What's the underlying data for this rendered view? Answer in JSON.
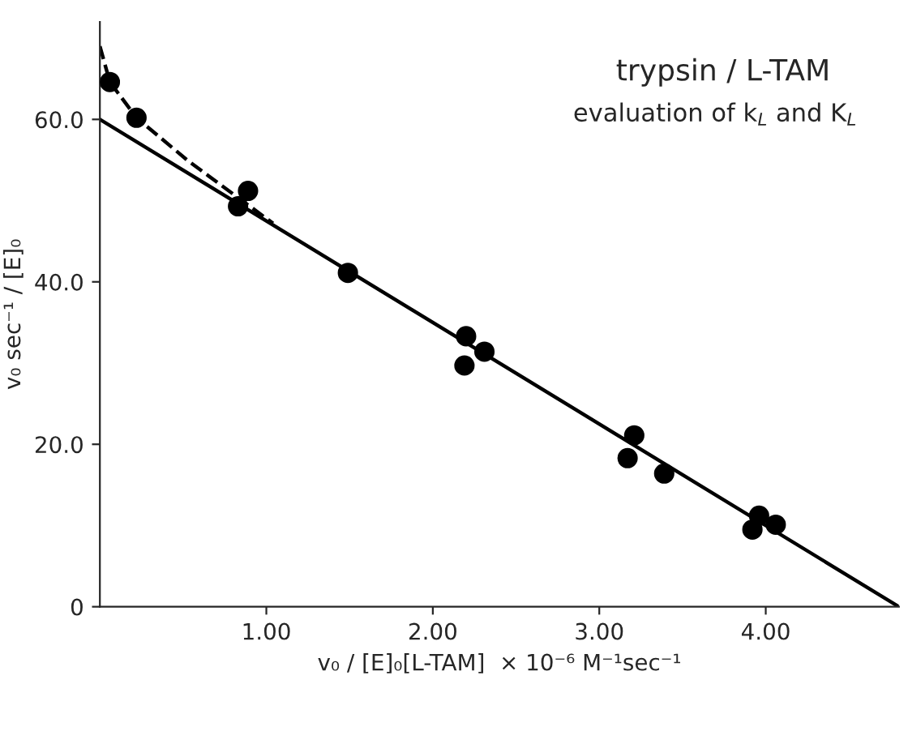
{
  "chart_data": {
    "type": "scatter",
    "title": "trypsin / L-TAM",
    "subtitle": "evaluation of k$_{L}$ and K$_{L}$",
    "xlabel": "v₀ / [E]₀[L-TAM]  × 10⁻⁶ M⁻¹sec⁻¹",
    "ylabel": "v₀ sec⁻¹ / [E]₀",
    "series": [
      {
        "color": "#000000",
        "marker": "circle",
        "x": [
          0.06,
          0.22,
          0.83,
          0.89,
          1.49,
          2.2,
          2.19,
          2.31,
          3.21,
          3.17,
          3.39,
          3.96,
          3.92,
          4.06
        ],
        "values": [
          64.6,
          60.2,
          49.3,
          51.2,
          41.1,
          33.3,
          29.7,
          31.4,
          21.1,
          18.3,
          16.4,
          11.2,
          9.5,
          10.1
        ]
      },
      {
        "type": "line",
        "color": "#000000",
        "line_style": "solid",
        "x": [
          0,
          4.8
        ],
        "values": [
          60,
          0
        ]
      },
      {
        "type": "line",
        "color": "#000000",
        "line_style": "dashed",
        "x": [
          0,
          0.06,
          0.22,
          0.53,
          1.04
        ],
        "values": [
          69,
          64.6,
          60.2,
          54.9,
          47.2
        ]
      }
    ],
    "xlim": [
      0,
      4.8
    ],
    "ylim": [
      0,
      72
    ],
    "xticks": [
      {
        "value": 1,
        "label": "1.00"
      },
      {
        "value": 2,
        "label": "2.00"
      },
      {
        "value": 3,
        "label": "3.00"
      },
      {
        "value": 4,
        "label": "4.00"
      }
    ],
    "yticks": [
      {
        "value": 0,
        "label": "0"
      },
      {
        "value": 20,
        "label": "20.0"
      },
      {
        "value": 40,
        "label": "40.0"
      },
      {
        "value": 60,
        "label": "60.0"
      }
    ],
    "grid": false,
    "legend": false
  }
}
